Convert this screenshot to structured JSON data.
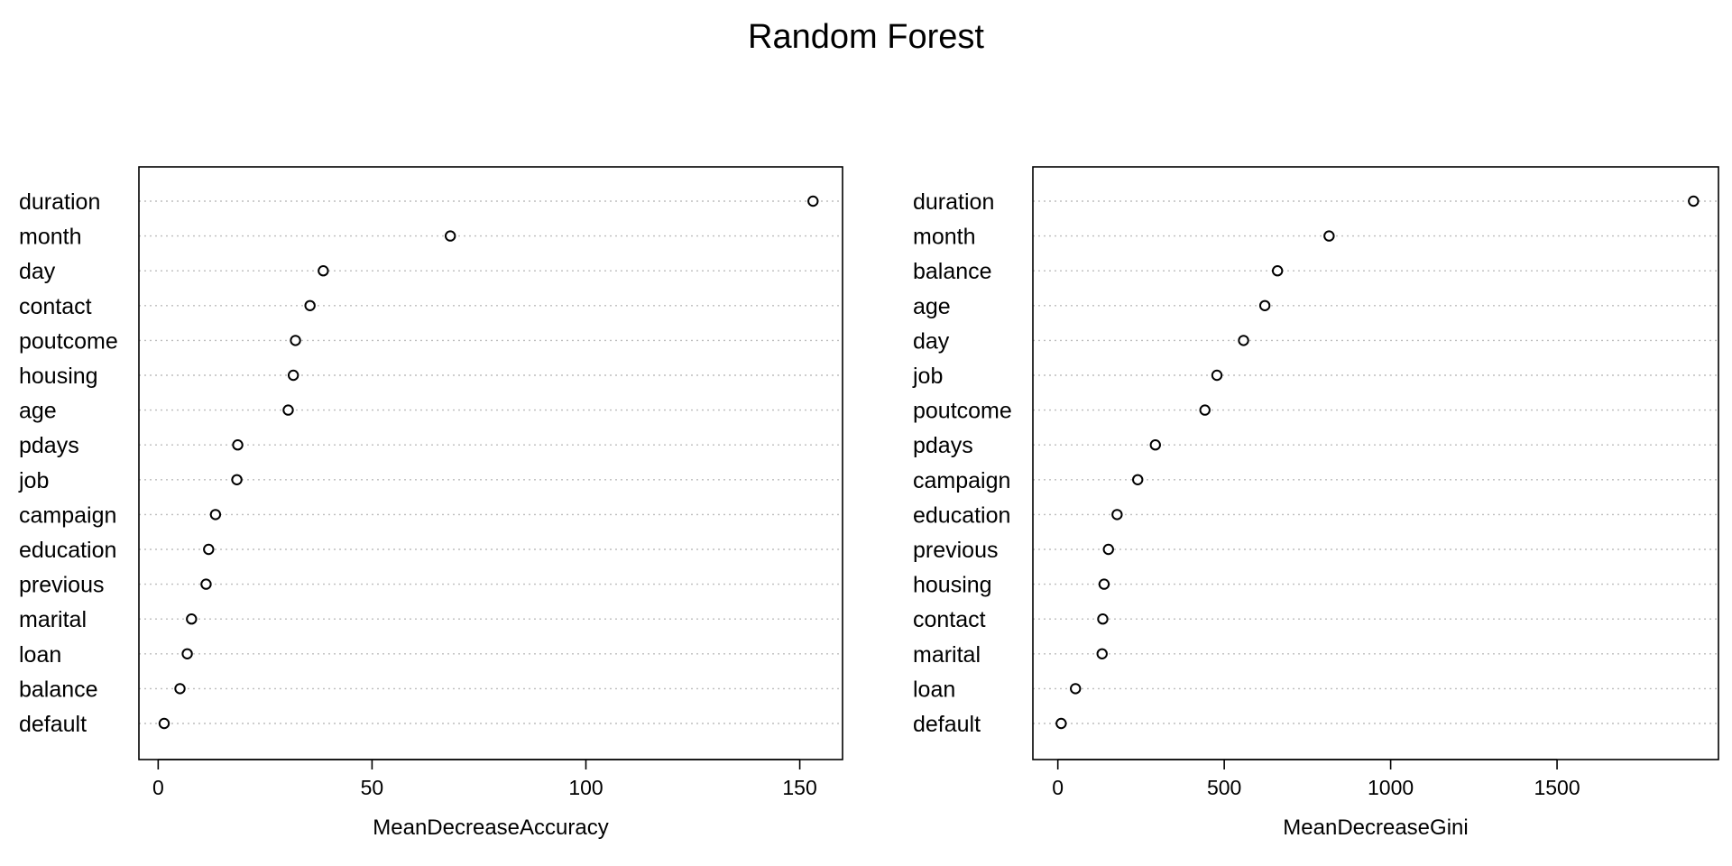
{
  "title": "Random Forest",
  "chart_data": [
    {
      "type": "scatter",
      "subtype": "dotchart",
      "xlabel": "MeanDecreaseAccuracy",
      "xlim": [
        -4.5,
        160
      ],
      "xticks": [
        0,
        50,
        100,
        150
      ],
      "grid": "dotted horizontal",
      "categories": [
        "duration",
        "month",
        "day",
        "contact",
        "poutcome",
        "housing",
        "age",
        "pdays",
        "job",
        "campaign",
        "education",
        "previous",
        "marital",
        "loan",
        "balance",
        "default"
      ],
      "values": [
        153.1,
        68.3,
        38.6,
        35.5,
        32.1,
        31.6,
        30.4,
        18.6,
        18.4,
        13.4,
        11.8,
        11.2,
        7.8,
        6.8,
        5.1,
        1.4
      ]
    },
    {
      "type": "scatter",
      "subtype": "dotchart",
      "xlabel": "MeanDecreaseGini",
      "xlim": [
        -75,
        1985
      ],
      "xticks": [
        0,
        500,
        1000,
        1500
      ],
      "grid": "dotted horizontal",
      "categories": [
        "duration",
        "month",
        "balance",
        "age",
        "day",
        "job",
        "poutcome",
        "pdays",
        "campaign",
        "education",
        "previous",
        "housing",
        "contact",
        "marital",
        "loan",
        "default"
      ],
      "values": [
        1910,
        815,
        660,
        622,
        558,
        478,
        442,
        293,
        240,
        178,
        152,
        139,
        135,
        133,
        53,
        10
      ]
    }
  ]
}
